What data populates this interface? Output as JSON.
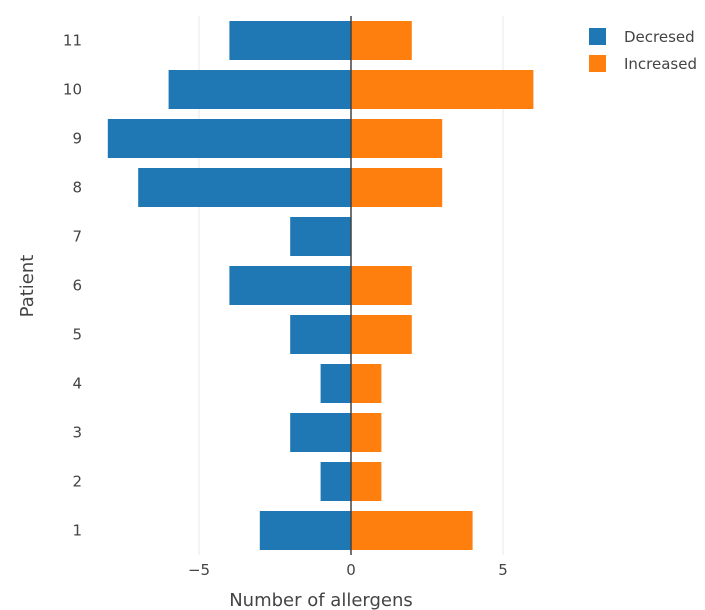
{
  "chart_data": {
    "type": "bar",
    "orientation": "horizontal",
    "barmode": "relative",
    "categories": [
      "1",
      "2",
      "3",
      "4",
      "5",
      "6",
      "7",
      "8",
      "9",
      "10",
      "11"
    ],
    "series": [
      {
        "name": "Decresed",
        "color": "#1f77b4",
        "values": [
          -3,
          -1,
          -2,
          -1,
          -2,
          -4,
          -2,
          -7,
          -8,
          -6,
          -4
        ]
      },
      {
        "name": "Increased",
        "color": "#ff7f0e",
        "values": [
          4,
          1,
          1,
          1,
          2,
          2,
          0,
          3,
          3,
          6,
          2
        ]
      }
    ],
    "xlabel": "Number of allergens",
    "ylabel": "Patient",
    "xlim": [
      -8.2,
      6.5
    ],
    "xticks": [
      {
        "value": -5,
        "label": "−5"
      },
      {
        "value": 0,
        "label": "0"
      },
      {
        "value": 5,
        "label": "5"
      }
    ],
    "grid": "vertical",
    "zero_line": true,
    "legend_position": "top-right"
  }
}
